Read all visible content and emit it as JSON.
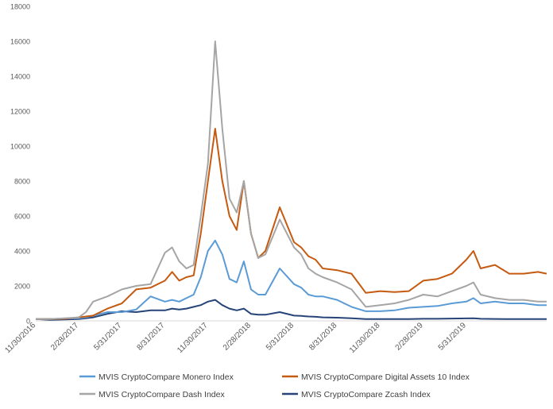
{
  "chart_data": {
    "type": "line",
    "title": "",
    "xlabel": "",
    "ylabel": "",
    "ylim": [
      0,
      18000
    ],
    "y_ticks": [
      0,
      2000,
      4000,
      6000,
      8000,
      10000,
      12000,
      14000,
      16000,
      18000
    ],
    "x_tick_labels": [
      "11/30/2016",
      "2/28/2017",
      "5/31/2017",
      "8/31/2017",
      "11/30/2017",
      "2/28/2018",
      "5/31/2018",
      "8/31/2018",
      "11/30/2018",
      "2/28/2019",
      "5/31/2019"
    ],
    "x_range": [
      0,
      35.6
    ],
    "grid": false,
    "legend_position": "bottom",
    "x": [
      0,
      1,
      2,
      3,
      3.5,
      4,
      5,
      6,
      7,
      8,
      9,
      9.5,
      10,
      10.5,
      11,
      11.5,
      12,
      12.5,
      13,
      13.5,
      14,
      14.5,
      15,
      15.5,
      16,
      17,
      18,
      18.5,
      19,
      19.5,
      20,
      21,
      22,
      23,
      24,
      25,
      26,
      27,
      28,
      29,
      30,
      30.5,
      31,
      32,
      33,
      34,
      35,
      35.6
    ],
    "series": [
      {
        "name": "MVIS CryptoCompare Monero Index",
        "color": "#5b9bd5",
        "values": [
          100,
          110,
          130,
          150,
          200,
          300,
          500,
          500,
          650,
          1400,
          1100,
          1200,
          1100,
          1300,
          1500,
          2500,
          4000,
          4600,
          3800,
          2400,
          2200,
          3400,
          1800,
          1500,
          1500,
          3000,
          2100,
          1900,
          1500,
          1400,
          1400,
          1200,
          800,
          550,
          550,
          600,
          750,
          800,
          850,
          1000,
          1100,
          1300,
          1000,
          1100,
          1000,
          1000,
          900,
          900
        ]
      },
      {
        "name": "MVIS CryptoCompare Digital Assets 10 Index",
        "color": "#c55a11",
        "values": [
          100,
          100,
          120,
          200,
          250,
          300,
          700,
          1000,
          1800,
          1900,
          2300,
          2800,
          2300,
          2500,
          2600,
          5000,
          8000,
          11000,
          8000,
          6000,
          5200,
          8000,
          5000,
          3600,
          4000,
          6500,
          4500,
          4200,
          3700,
          3500,
          3000,
          2900,
          2700,
          1600,
          1700,
          1650,
          1700,
          2300,
          2400,
          2700,
          3500,
          4000,
          3000,
          3200,
          2700,
          2700,
          2800,
          2700
        ]
      },
      {
        "name": "MVIS CryptoCompare Dash Index",
        "color": "#a5a5a5",
        "values": [
          100,
          100,
          150,
          200,
          500,
          1100,
          1400,
          1800,
          2000,
          2100,
          3900,
          4200,
          3400,
          3000,
          3200,
          6000,
          9000,
          16000,
          11000,
          7000,
          6200,
          8000,
          5000,
          3600,
          3800,
          5800,
          4200,
          3800,
          3000,
          2700,
          2500,
          2200,
          1800,
          800,
          900,
          1000,
          1200,
          1500,
          1400,
          1700,
          2000,
          2200,
          1500,
          1300,
          1200,
          1200,
          1100,
          1100
        ]
      },
      {
        "name": "MVIS CryptoCompare Zcash Index",
        "color": "#264478",
        "values": [
          100,
          60,
          80,
          100,
          150,
          200,
          400,
          550,
          500,
          600,
          600,
          700,
          650,
          700,
          800,
          900,
          1100,
          1200,
          900,
          700,
          600,
          700,
          400,
          350,
          350,
          500,
          300,
          280,
          250,
          230,
          200,
          180,
          150,
          100,
          100,
          100,
          100,
          120,
          120,
          130,
          140,
          150,
          120,
          110,
          100,
          100,
          100,
          100
        ]
      }
    ]
  }
}
